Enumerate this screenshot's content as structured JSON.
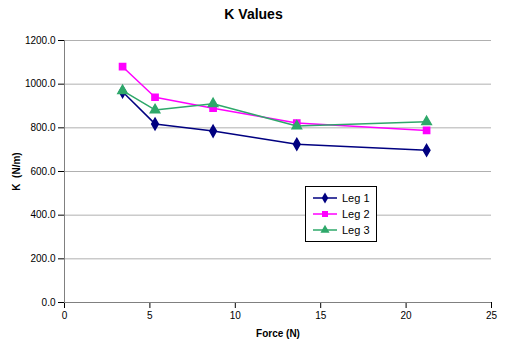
{
  "chart_data": {
    "type": "line",
    "title": "K Values",
    "x_label": "Force (N)",
    "y_label": "K  (N/m)",
    "x": [
      3.4,
      5.3,
      8.7,
      13.6,
      21.2
    ],
    "series": [
      {
        "name": "Leg 1",
        "color": "#000080",
        "marker": "diamond",
        "values": [
          965,
          818,
          785,
          725,
          697
        ]
      },
      {
        "name": "Leg 2",
        "color": "#ff00ff",
        "marker": "square",
        "values": [
          1080,
          940,
          890,
          822,
          788
        ]
      },
      {
        "name": "Leg 3",
        "color": "#2ea86a",
        "marker": "triangle",
        "values": [
          970,
          882,
          910,
          808,
          828
        ]
      }
    ],
    "xlim": [
      0,
      25
    ],
    "xticks": [
      0,
      5,
      10,
      15,
      20,
      25
    ],
    "ylim": [
      0,
      1200
    ],
    "yticks": [
      {
        "value": 0,
        "label": "0.0"
      },
      {
        "value": 200,
        "label": "200.0"
      },
      {
        "value": 400,
        "label": "400.0"
      },
      {
        "value": 600,
        "label": "600.0"
      },
      {
        "value": 800,
        "label": "800.0"
      },
      {
        "value": 1000,
        "label": "1000.0"
      },
      {
        "value": 1200,
        "label": "1200.0"
      }
    ],
    "grid": true,
    "legend": "right"
  }
}
